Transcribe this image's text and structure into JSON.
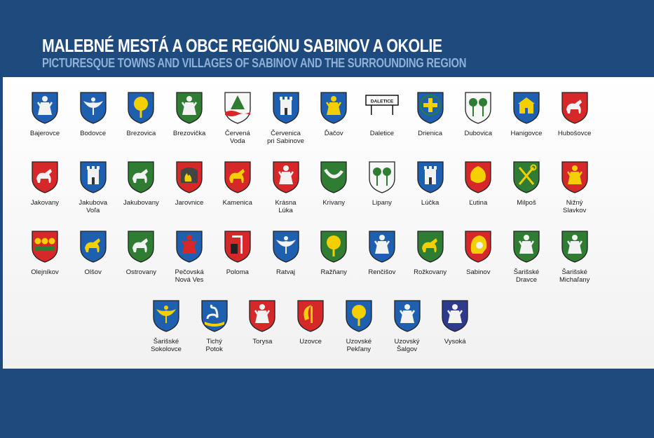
{
  "title": "MALEBNÉ MESTÁ A OBCE REGIÓNU SABINOV A OKOLIE",
  "subtitle": "PICTURESQUE TOWNS AND VILLAGES OF SABINOV AND THE SURROUNDING REGION",
  "daletice_sign": "DALETICE",
  "rows": [
    [
      {
        "name": "Bajerovce",
        "icon": "figure-crest-icon",
        "field": "#1f5fb0",
        "charge": "#f2f2f2"
      },
      {
        "name": "Bodovce",
        "icon": "bird-crest-icon",
        "field": "#1f5fb0",
        "charge": "#f2f2f2"
      },
      {
        "name": "Brezovica",
        "icon": "tree-crest-icon",
        "field": "#1f5fb0",
        "charge": "#f5d000"
      },
      {
        "name": "Brezovička",
        "icon": "saint-crest-icon",
        "field": "#2e7d32",
        "charge": "#f2f2f2"
      },
      {
        "name": "Červená\nVoda",
        "icon": "fir-tree-crest-icon",
        "field": "#f7f7f7",
        "charge": "#2e7d32"
      },
      {
        "name": "Červenica\npri Sabinove",
        "icon": "castle-crest-icon",
        "field": "#1f5fb0",
        "charge": "#f2f2f2"
      },
      {
        "name": "Ďačov",
        "icon": "figure-crest-icon",
        "field": "#1f5fb0",
        "charge": "#f5d000"
      },
      {
        "name": "Daletice",
        "icon": "sign-icon",
        "field": "#ffffff",
        "charge": "#111111"
      },
      {
        "name": "Drienica",
        "icon": "cross-crest-icon",
        "field": "#1f5fb0",
        "charge": "#f5d000"
      },
      {
        "name": "Dubovica",
        "icon": "trees-crest-icon",
        "field": "#f7f7f7",
        "charge": "#2e7d32"
      },
      {
        "name": "Hanigovce",
        "icon": "building-crest-icon",
        "field": "#1f5fb0",
        "charge": "#f5d000"
      },
      {
        "name": "Hubošovce",
        "icon": "horse-crest-icon",
        "field": "#d62828",
        "charge": "#f2f2f2"
      }
    ],
    [
      {
        "name": "Jakovany",
        "icon": "deer-crest-icon",
        "field": "#d62828",
        "charge": "#f2f2f2"
      },
      {
        "name": "Jakubova\nVoľa",
        "icon": "tower-crest-icon",
        "field": "#1f5fb0",
        "charge": "#f2f2f2"
      },
      {
        "name": "Jakubovany",
        "icon": "deer-crest-icon",
        "field": "#2e7d32",
        "charge": "#f2f2f2"
      },
      {
        "name": "Jarovnice",
        "icon": "fire-crest-icon",
        "field": "#d62828",
        "charge": "#f5d000"
      },
      {
        "name": "Kamenica",
        "icon": "lion-crest-icon",
        "field": "#d62828",
        "charge": "#f5d000"
      },
      {
        "name": "Krásna\nLúka",
        "icon": "figure-crest-icon",
        "field": "#d62828",
        "charge": "#f2f2f2"
      },
      {
        "name": "Krivany",
        "icon": "horn-crest-icon",
        "field": "#2e7d32",
        "charge": "#f2f2f2"
      },
      {
        "name": "Lipany",
        "icon": "trees-crest-icon",
        "field": "#f7f7f7",
        "charge": "#2e7d32"
      },
      {
        "name": "Lúčka",
        "icon": "church-crest-icon",
        "field": "#1f5fb0",
        "charge": "#f2f2f2"
      },
      {
        "name": "Ľutina",
        "icon": "leaf-crest-icon",
        "field": "#d62828",
        "charge": "#f5d000"
      },
      {
        "name": "Milpoš",
        "icon": "keys-crest-icon",
        "field": "#2e7d32",
        "charge": "#f5d000"
      },
      {
        "name": "Nižný\nSlavkov",
        "icon": "saint-crest-icon",
        "field": "#d62828",
        "charge": "#f5d000"
      }
    ],
    [
      {
        "name": "Olejníkov",
        "icon": "flowers-crest-icon",
        "field": "#d62828",
        "charge": "#f5d000"
      },
      {
        "name": "Olšov",
        "icon": "animal-crest-icon",
        "field": "#1f5fb0",
        "charge": "#f5d000"
      },
      {
        "name": "Ostrovany",
        "icon": "horse-crest-icon",
        "field": "#2e7d32",
        "charge": "#f2f2f2"
      },
      {
        "name": "Pečovská\nNová Ves",
        "icon": "saint-crest-icon",
        "field": "#1f5fb0",
        "charge": "#d62828"
      },
      {
        "name": "Poloma",
        "icon": "gallows-crest-icon",
        "field": "#d62828",
        "charge": "#f2f2f2"
      },
      {
        "name": "Ratvaj",
        "icon": "bird-crest-icon",
        "field": "#1f5fb0",
        "charge": "#f2f2f2"
      },
      {
        "name": "Ražňany",
        "icon": "tree-crest-icon",
        "field": "#2e7d32",
        "charge": "#f5d000"
      },
      {
        "name": "Renčišov",
        "icon": "figure-crest-icon",
        "field": "#1f5fb0",
        "charge": "#f2f2f2"
      },
      {
        "name": "Rožkovany",
        "icon": "deer-crest-icon",
        "field": "#2e7d32",
        "charge": "#f5d000"
      },
      {
        "name": "Sabinov",
        "icon": "helmet-crest-icon",
        "field": "#d62828",
        "charge": "#f5d000"
      },
      {
        "name": "Šarišské\nDravce",
        "icon": "figure-crest-icon",
        "field": "#2e7d32",
        "charge": "#f2f2f2"
      },
      {
        "name": "Šarišské\nMichaľany",
        "icon": "figure-crest-icon",
        "field": "#2e7d32",
        "charge": "#f2f2f2"
      }
    ],
    [
      {
        "name": "Šarišské\nSokolovce",
        "icon": "bird-crest-icon",
        "field": "#1f5fb0",
        "charge": "#f5d000"
      },
      {
        "name": "Tichý\nPotok",
        "icon": "swan-crest-icon",
        "field": "#1f5fb0",
        "charge": "#f2f2f2"
      },
      {
        "name": "Torysa",
        "icon": "figure-crest-icon",
        "field": "#d62828",
        "charge": "#f2f2f2"
      },
      {
        "name": "Uzovce",
        "icon": "sickle-crest-icon",
        "field": "#d62828",
        "charge": "#f5d000"
      },
      {
        "name": "Uzovské\nPekľany",
        "icon": "tree-crest-icon",
        "field": "#1f5fb0",
        "charge": "#f5d000"
      },
      {
        "name": "Uzovský\nŠalgov",
        "icon": "figure-crest-icon",
        "field": "#1f5fb0",
        "charge": "#f2f2f2"
      },
      {
        "name": "Vysoká",
        "icon": "figure-crest-icon",
        "field": "#2e3a8c",
        "charge": "#f2f2f2"
      }
    ]
  ]
}
